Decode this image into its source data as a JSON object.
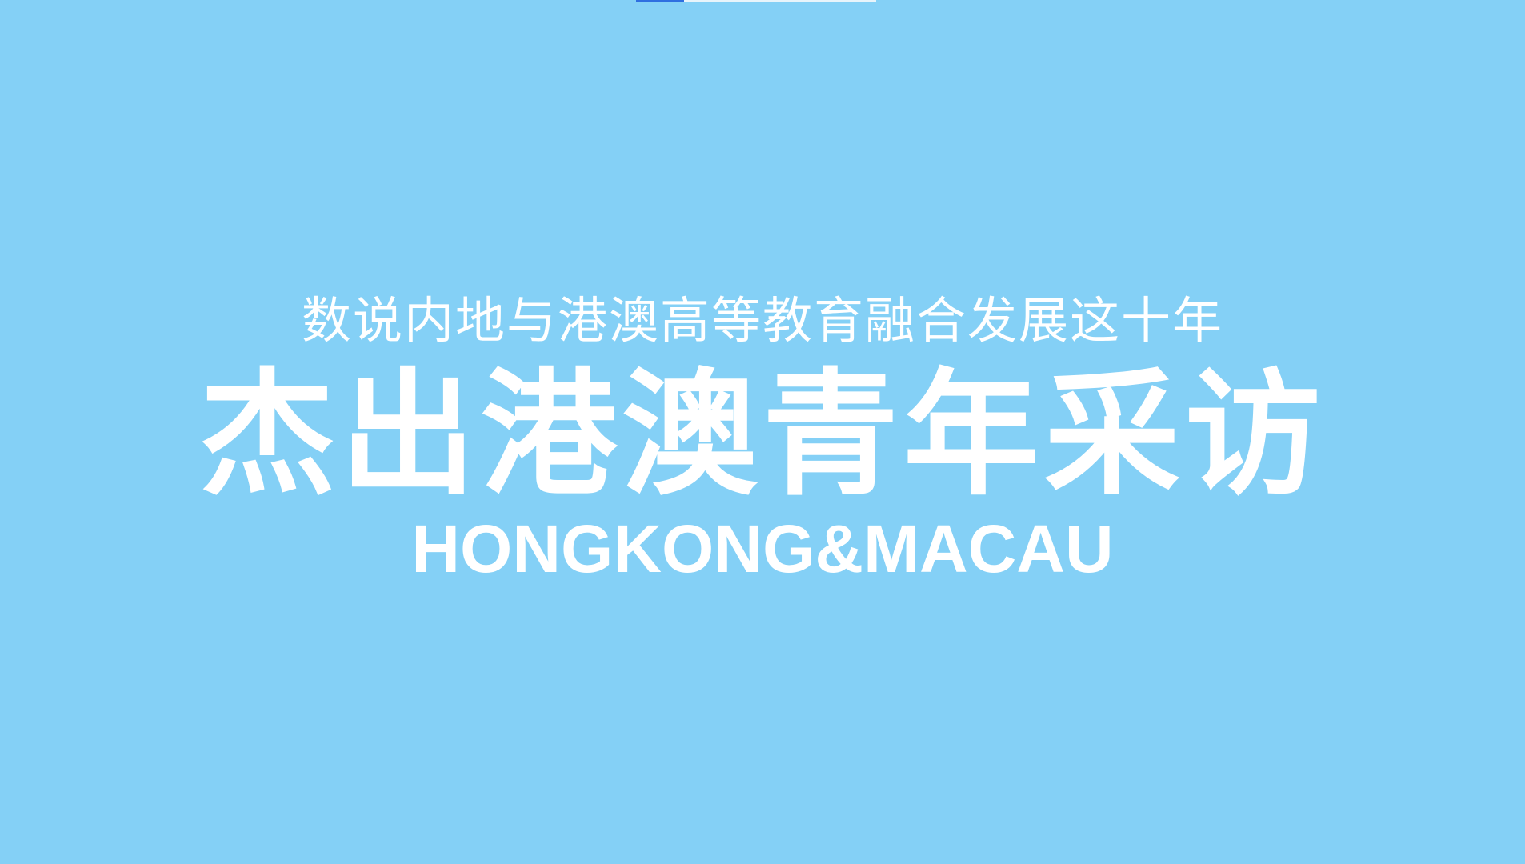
{
  "slide": {
    "subtitle": "数说内地与港澳高等教育融合发展这十年",
    "title": "杰出港澳青年采访",
    "english_title": "HONGKONG&MACAU"
  },
  "colors": {
    "background": "#84D0F6",
    "text": "#FFFFFF",
    "indicator_active": "#2F6FE0",
    "indicator_rest": "#E8F4FB"
  }
}
